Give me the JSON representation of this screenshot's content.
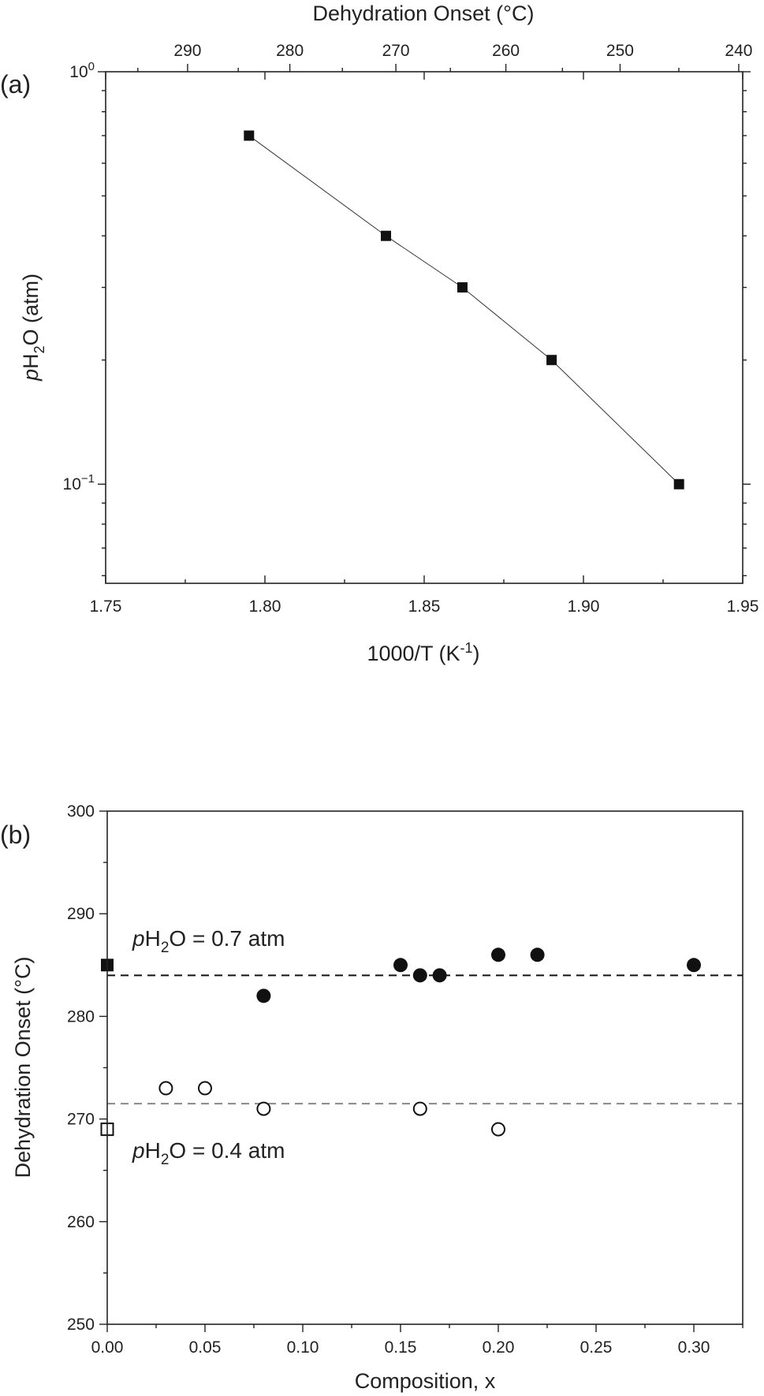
{
  "chart_data": [
    {
      "panel_label": "(a)",
      "type": "line",
      "xlabel": "1000/T (K",
      "xlabel_sup": "-1",
      "xlabel_tail": ")",
      "ylabel_italic": "p",
      "ylabel_main": "H",
      "ylabel_sub": "2",
      "ylabel_tail": "O (atm)",
      "top_xlabel": "Dehydration Onset (°C)",
      "xlim": [
        1.75,
        1.95
      ],
      "ylim": [
        0.0575,
        1.0
      ],
      "yscale": "log",
      "x_ticks": [
        "1.75",
        "1.80",
        "1.85",
        "1.90",
        "1.95"
      ],
      "x_tick_values": [
        1.75,
        1.8,
        1.85,
        1.9,
        1.95
      ],
      "y_ticks": [
        {
          "value": 1.0,
          "base": "10",
          "exp": "0"
        },
        {
          "value": 0.1,
          "base": "10",
          "exp": "−1"
        }
      ],
      "top_x_ticks": [
        "290",
        "280",
        "270",
        "260",
        "250",
        "240"
      ],
      "top_x_tick_celsius": [
        290,
        280,
        270,
        260,
        250,
        240
      ],
      "series": [
        {
          "marker": "filled-square",
          "x": [
            1.795,
            1.838,
            1.862,
            1.89,
            1.93
          ],
          "y": [
            0.7,
            0.4,
            0.3,
            0.2,
            0.1
          ]
        }
      ]
    },
    {
      "panel_label": "(b)",
      "type": "scatter",
      "xlabel": "Composition, x",
      "ylabel": "Dehydration Onset (°C)",
      "xlim": [
        0.0,
        0.325
      ],
      "ylim": [
        250,
        300
      ],
      "x_ticks": [
        "0.00",
        "0.05",
        "0.10",
        "0.15",
        "0.20",
        "0.25",
        "0.30"
      ],
      "x_tick_values": [
        0.0,
        0.05,
        0.1,
        0.15,
        0.2,
        0.25,
        0.3
      ],
      "y_ticks": [
        "250",
        "260",
        "270",
        "280",
        "290",
        "300"
      ],
      "y_tick_values": [
        250,
        260,
        270,
        280,
        290,
        300
      ],
      "series": [
        {
          "marker": "filled-square",
          "x": [
            0.0
          ],
          "y": [
            285
          ]
        },
        {
          "marker": "filled-circle",
          "x": [
            0.08,
            0.15,
            0.16,
            0.17,
            0.2,
            0.22,
            0.3
          ],
          "y": [
            282,
            285,
            284,
            284,
            286,
            286,
            285
          ]
        },
        {
          "marker": "open-square",
          "x": [
            0.0
          ],
          "y": [
            269
          ]
        },
        {
          "marker": "open-circle",
          "x": [
            0.03,
            0.05,
            0.08,
            0.16,
            0.2
          ],
          "y": [
            273,
            273,
            271,
            271,
            269
          ]
        }
      ],
      "reference_lines": [
        {
          "y": 284,
          "style": "dashed",
          "color": "#111111"
        },
        {
          "y": 271.5,
          "style": "dashed",
          "color": "#888888"
        }
      ],
      "annotations": [
        {
          "italic": "p",
          "main": "H",
          "sub": "2",
          "tail": "O = 0.7 atm"
        },
        {
          "italic": "p",
          "main": "H",
          "sub": "2",
          "tail": "O = 0.4 atm"
        }
      ]
    }
  ]
}
